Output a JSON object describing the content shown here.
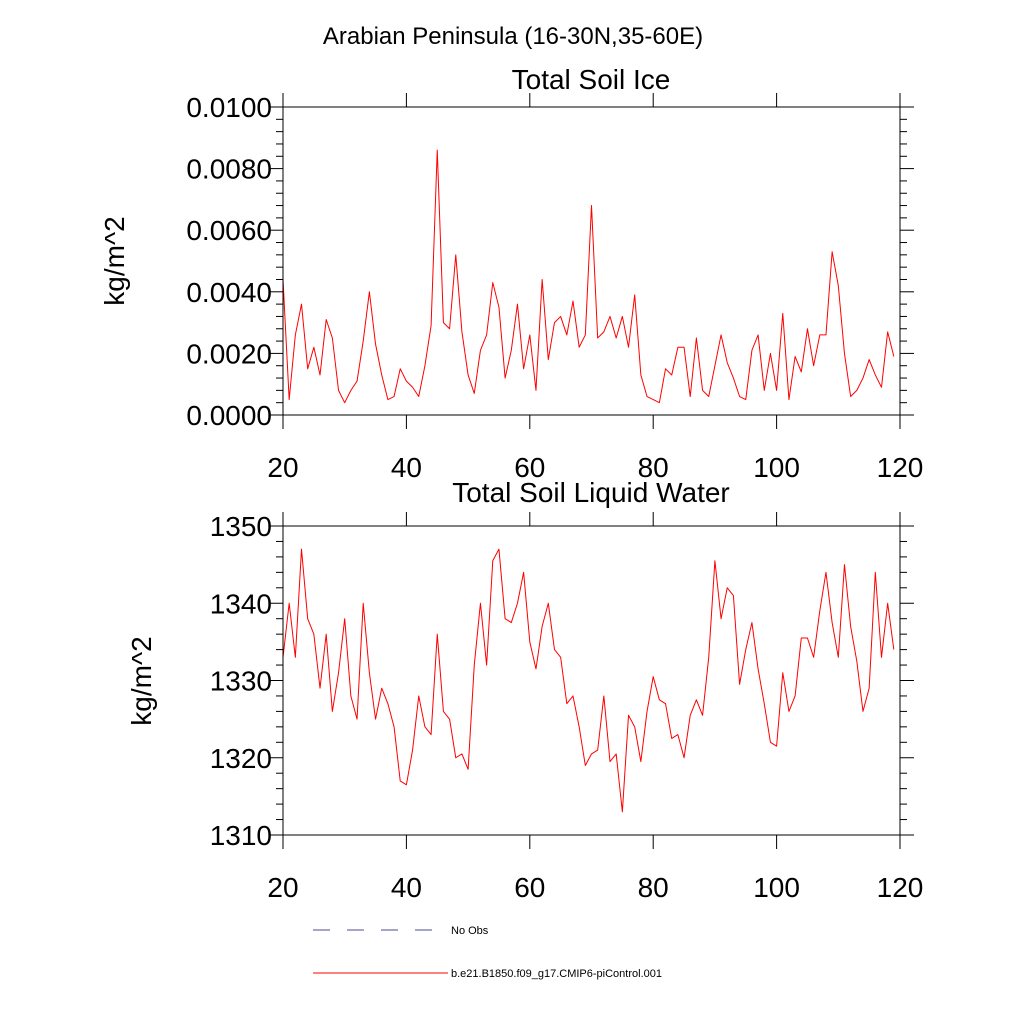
{
  "figure": {
    "title": "Arabian Peninsula (16-30N,35-60E)"
  },
  "colors": {
    "model": "#ff0000",
    "obs": "#4b4b8f",
    "axis": "#000000",
    "background": "#ffffff"
  },
  "legend": {
    "placement": "bottom",
    "entries": [
      {
        "label": "No Obs",
        "style": "dashed",
        "color": "#4b4b8f"
      },
      {
        "label": "b.e21.B1850.f09_g17.CMIP6-piControl.001",
        "style": "solid",
        "color": "#ff0000"
      }
    ]
  },
  "chart_data": [
    {
      "type": "line",
      "title": "Total Soil Ice",
      "xlabel": "",
      "ylabel": "kg/m^2",
      "xlim": [
        20,
        120
      ],
      "ylim": [
        0,
        0.01
      ],
      "xticks": [
        20,
        40,
        60,
        80,
        100,
        120
      ],
      "xtick_labels": [
        "20",
        "40",
        "60",
        "80",
        "100",
        "120"
      ],
      "yticks": [
        0,
        0.002,
        0.004,
        0.006,
        0.008,
        0.01
      ],
      "ytick_labels": [
        "0.0000",
        "0.0020",
        "0.0040",
        "0.0060",
        "0.0080",
        "0.0100"
      ],
      "grid": false,
      "x_start": 20,
      "x_step": 1,
      "series": [
        {
          "name": "b.e21.B1850.f09_g17.CMIP6-piControl.001",
          "values": [
            0.0044,
            0.0005,
            0.0026,
            0.0036,
            0.0015,
            0.0022,
            0.0013,
            0.0031,
            0.0025,
            0.0008,
            0.0004,
            0.0008,
            0.0011,
            0.0024,
            0.004,
            0.0023,
            0.0013,
            0.0005,
            0.0006,
            0.0015,
            0.0011,
            0.0009,
            0.0006,
            0.0016,
            0.0029,
            0.0086,
            0.003,
            0.0028,
            0.0052,
            0.0027,
            0.0013,
            0.0007,
            0.0021,
            0.0026,
            0.0043,
            0.0035,
            0.0012,
            0.0021,
            0.0036,
            0.0015,
            0.0026,
            0.0008,
            0.0044,
            0.0018,
            0.003,
            0.0032,
            0.0026,
            0.0037,
            0.0022,
            0.0026,
            0.0068,
            0.0025,
            0.0027,
            0.0032,
            0.0025,
            0.0032,
            0.0022,
            0.0039,
            0.0013,
            0.0006,
            0.0005,
            0.0004,
            0.0015,
            0.0013,
            0.0022,
            0.0022,
            0.0006,
            0.0025,
            0.0008,
            0.0006,
            0.0016,
            0.0026,
            0.0017,
            0.0012,
            0.0006,
            0.0005,
            0.0021,
            0.0026,
            0.0008,
            0.002,
            0.0008,
            0.0033,
            0.0005,
            0.0019,
            0.0014,
            0.0028,
            0.0016,
            0.0026,
            0.0026,
            0.0053,
            0.0042,
            0.002,
            0.0006,
            0.0008,
            0.0012,
            0.0018,
            0.0013,
            0.0009,
            0.0027,
            0.0019
          ]
        }
      ]
    },
    {
      "type": "line",
      "title": "Total Soil Liquid Water",
      "xlabel": "",
      "ylabel": "kg/m^2",
      "xlim": [
        20,
        120
      ],
      "ylim": [
        1310,
        1350
      ],
      "xticks": [
        20,
        40,
        60,
        80,
        100,
        120
      ],
      "xtick_labels": [
        "20",
        "40",
        "60",
        "80",
        "100",
        "120"
      ],
      "yticks": [
        1310,
        1320,
        1330,
        1340,
        1350
      ],
      "ytick_labels": [
        "1310",
        "1320",
        "1330",
        "1340",
        "1350"
      ],
      "grid": false,
      "x_start": 20,
      "x_step": 1,
      "series": [
        {
          "name": "b.e21.B1850.f09_g17.CMIP6-piControl.001",
          "values": [
            1333,
            1340,
            1333,
            1347,
            1338,
            1336,
            1329,
            1336,
            1326,
            1331,
            1338,
            1328,
            1325,
            1340,
            1331,
            1325,
            1329,
            1327,
            1324,
            1317,
            1316.5,
            1321,
            1328,
            1324,
            1323,
            1336,
            1326,
            1325,
            1320,
            1320.5,
            1318.5,
            1332,
            1340,
            1332,
            1345.5,
            1347,
            1338,
            1337.5,
            1340,
            1344,
            1335,
            1331.5,
            1337,
            1340,
            1334,
            1333,
            1327,
            1328,
            1324,
            1319,
            1320.5,
            1321,
            1328,
            1319.5,
            1320.5,
            1313,
            1325.5,
            1324,
            1319.5,
            1326,
            1330.5,
            1327.5,
            1327,
            1322.5,
            1323,
            1320,
            1325.5,
            1327.5,
            1325.5,
            1333,
            1345.5,
            1338,
            1342,
            1341,
            1329.5,
            1334,
            1337.5,
            1331.5,
            1327,
            1322,
            1321.5,
            1331,
            1326,
            1328,
            1335.5,
            1335.5,
            1333,
            1339,
            1344,
            1337.5,
            1333,
            1345,
            1337,
            1332.5,
            1326,
            1329,
            1344,
            1333,
            1340,
            1334
          ]
        }
      ]
    }
  ]
}
